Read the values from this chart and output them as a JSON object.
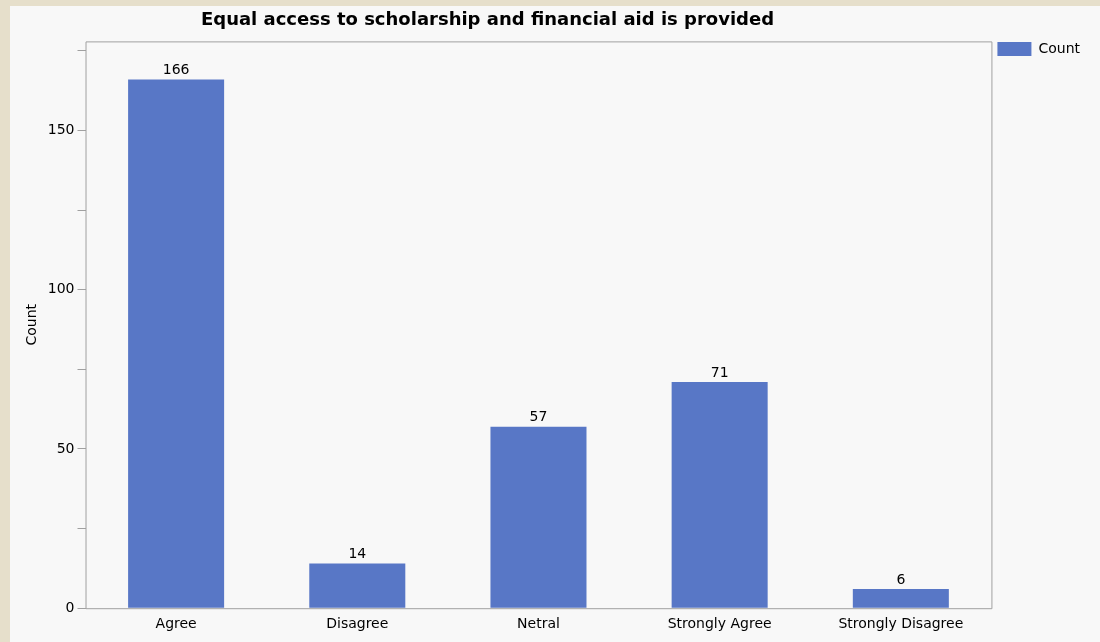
{
  "chart_data": {
    "type": "bar",
    "title": "Equal access to scholarship and financial aid is provided",
    "ylabel": "Count",
    "categories": [
      "Agree",
      "Disagree",
      "Netral",
      "Strongly Agree",
      "Strongly Disagree"
    ],
    "series": [
      {
        "name": "Count",
        "color": "#5877c6",
        "values": [
          166,
          14,
          57,
          71,
          6
        ]
      }
    ],
    "ylim": [
      0,
      178
    ],
    "yticks": [
      0,
      {
        "value": 25,
        "label": null
      },
      50,
      {
        "value": 75,
        "label": null
      },
      100,
      {
        "value": 125,
        "label": null
      },
      150,
      {
        "value": 175,
        "label": null
      }
    ],
    "data_labels": true,
    "legend": "top right",
    "grid": false
  }
}
